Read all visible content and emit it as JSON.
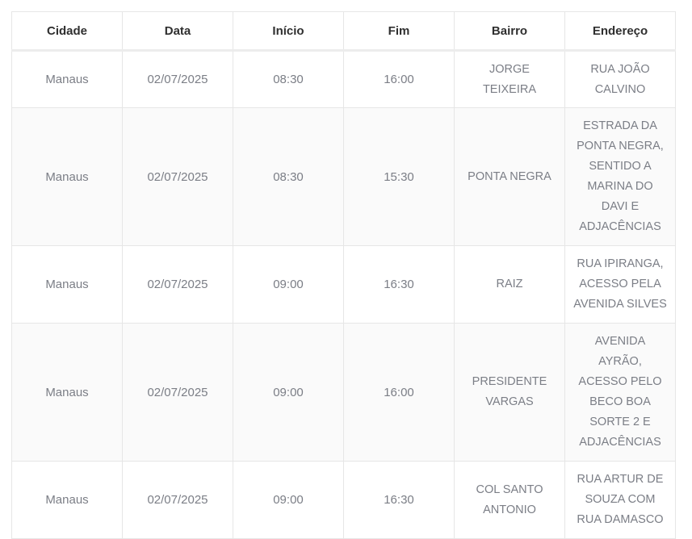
{
  "headers": [
    "Cidade",
    "Data",
    "Início",
    "Fim",
    "Bairro",
    "Endereço"
  ],
  "rows": [
    {
      "cidade": "Manaus",
      "data": "02/07/2025",
      "inicio": "08:30",
      "fim": "16:00",
      "bairro": "JORGE TEIXEIRA",
      "endereco": "RUA JOÃO CALVINO"
    },
    {
      "cidade": "Manaus",
      "data": "02/07/2025",
      "inicio": "08:30",
      "fim": "15:30",
      "bairro": "PONTA NEGRA",
      "endereco": "ESTRADA DA PONTA NEGRA, SENTIDO A MARINA DO DAVI E ADJACÊNCIAS"
    },
    {
      "cidade": "Manaus",
      "data": "02/07/2025",
      "inicio": "09:00",
      "fim": "16:30",
      "bairro": "RAIZ",
      "endereco": "RUA IPIRANGA, ACESSO PELA AVENIDA SILVES"
    },
    {
      "cidade": "Manaus",
      "data": "02/07/2025",
      "inicio": "09:00",
      "fim": "16:00",
      "bairro": "PRESIDENTE VARGAS",
      "endereco": "AVENIDA AYRÃO, ACESSO PELO BECO BOA SORTE 2 E ADJACÊNCIAS"
    },
    {
      "cidade": "Manaus",
      "data": "02/07/2025",
      "inicio": "09:00",
      "fim": "16:30",
      "bairro": "COL SANTO ANTONIO",
      "endereco": "RUA ARTUR DE SOUZA COM RUA DAMASCO"
    }
  ]
}
